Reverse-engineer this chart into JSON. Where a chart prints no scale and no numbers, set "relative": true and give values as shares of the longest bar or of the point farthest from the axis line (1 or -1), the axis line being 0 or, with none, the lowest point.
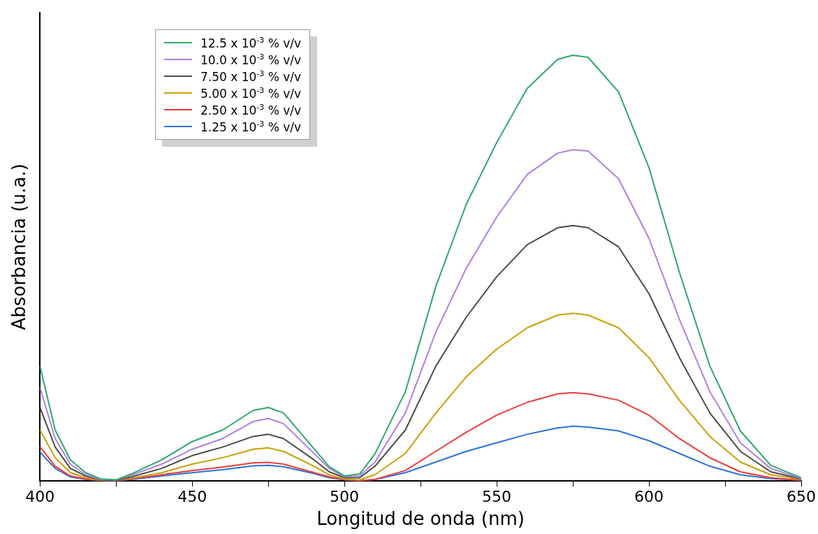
{
  "chart_data": {
    "type": "line",
    "xlabel": "Longitud de onda (nm)",
    "ylabel": "Absorbancia (u.a.)",
    "relative": true,
    "x": [
      400,
      405,
      410,
      415,
      420,
      425,
      430,
      440,
      450,
      460,
      470,
      475,
      480,
      490,
      495,
      500,
      505,
      510,
      520,
      530,
      540,
      550,
      560,
      570,
      575,
      580,
      590,
      600,
      610,
      620,
      630,
      640,
      650
    ],
    "xlim": [
      400,
      650
    ],
    "xticks": [
      400,
      {
        "value": 425,
        "label": null
      },
      450,
      {
        "value": 475,
        "label": null
      },
      500,
      {
        "value": 525,
        "label": null
      },
      550,
      {
        "value": 575,
        "label": null
      },
      600,
      {
        "value": 625,
        "label": null
      },
      650
    ],
    "grid": false,
    "legend": "top left",
    "marker": "none",
    "line_style": "solid",
    "series": [
      {
        "name": "12.5 x 10$^{-3}$ % v/v",
        "color": "#2ca86a",
        "values": [
          0.27,
          0.12,
          0.05,
          0.02,
          0.005,
          0.003,
          0.017,
          0.05,
          0.093,
          0.12,
          0.166,
          0.173,
          0.16,
          0.076,
          0.034,
          0.012,
          0.017,
          0.064,
          0.21,
          0.457,
          0.65,
          0.795,
          0.922,
          0.99,
          1,
          0.995,
          0.914,
          0.736,
          0.49,
          0.27,
          0.118,
          0.037,
          0.008
        ]
      },
      {
        "name": "10.0 x 10$^{-3}$ % v/v",
        "color": "#b07fe0",
        "values": [
          0.22,
          0.1,
          0.04,
          0.015,
          0.004,
          0.003,
          0.014,
          0.04,
          0.075,
          0.1,
          0.14,
          0.147,
          0.135,
          0.065,
          0.03,
          0.01,
          0.012,
          0.045,
          0.16,
          0.35,
          0.5,
          0.62,
          0.72,
          0.77,
          0.778,
          0.775,
          0.71,
          0.57,
          0.38,
          0.21,
          0.09,
          0.03,
          0.006
        ]
      },
      {
        "name": "7.50 x 10$^{-3}$ % v/v",
        "color": "#4a4a4a",
        "values": [
          0.173,
          0.08,
          0.03,
          0.012,
          0.003,
          0.002,
          0.01,
          0.03,
          0.06,
          0.08,
          0.105,
          0.11,
          0.1,
          0.05,
          0.022,
          0.008,
          0.008,
          0.035,
          0.12,
          0.27,
          0.385,
          0.48,
          0.555,
          0.595,
          0.6,
          0.595,
          0.55,
          0.44,
          0.29,
          0.16,
          0.07,
          0.022,
          0.005
        ]
      },
      {
        "name": "5.00 x 10$^{-3}$ % v/v",
        "color": "#c9a000",
        "values": [
          0.12,
          0.055,
          0.02,
          0.008,
          0.002,
          0.002,
          0.007,
          0.02,
          0.04,
          0.055,
          0.075,
          0.078,
          0.07,
          0.035,
          0.015,
          0.005,
          0.003,
          0.015,
          0.065,
          0.16,
          0.245,
          0.31,
          0.36,
          0.39,
          0.394,
          0.39,
          0.36,
          0.29,
          0.19,
          0.105,
          0.045,
          0.015,
          0.004
        ]
      },
      {
        "name": "2.50 x 10$^{-3}$ % v/v",
        "color": "#ee3b3b",
        "values": [
          0.081,
          0.035,
          0.012,
          0.005,
          0.002,
          0.001,
          0.005,
          0.015,
          0.025,
          0.033,
          0.043,
          0.044,
          0.04,
          0.02,
          0.01,
          0.004,
          0.001,
          0.004,
          0.025,
          0.07,
          0.115,
          0.155,
          0.185,
          0.205,
          0.208,
          0.205,
          0.19,
          0.155,
          0.1,
          0.055,
          0.022,
          0.008,
          0.002
        ]
      },
      {
        "name": "1.25 x 10$^{-3}$ % v/v",
        "color": "#2a72d8",
        "values": [
          0.068,
          0.03,
          0.01,
          0.004,
          0.002,
          0.001,
          0.004,
          0.012,
          0.02,
          0.027,
          0.036,
          0.037,
          0.034,
          0.018,
          0.008,
          0.003,
          0.001,
          0.004,
          0.02,
          0.045,
          0.07,
          0.09,
          0.11,
          0.125,
          0.129,
          0.127,
          0.118,
          0.095,
          0.065,
          0.035,
          0.015,
          0.006,
          0.002
        ]
      }
    ]
  }
}
